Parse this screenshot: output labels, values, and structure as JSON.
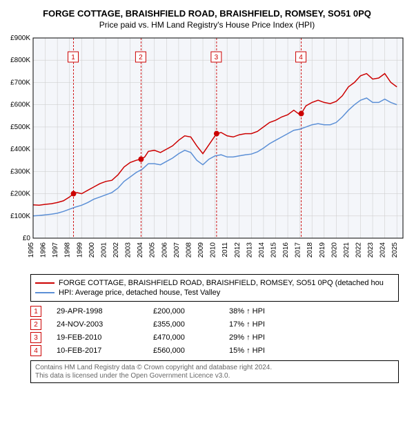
{
  "title_line1": "FORGE COTTAGE, BRAISHFIELD ROAD, BRAISHFIELD, ROMSEY, SO51 0PQ",
  "title_line2": "Price paid vs. HM Land Registry's House Price Index (HPI)",
  "chart": {
    "type": "line",
    "background_color": "#ffffff",
    "plot_background_color": "#f4f6fa",
    "grid_color": "#cfcfcf",
    "axis_color": "#000000",
    "xlim": [
      1995,
      2025.5
    ],
    "ylim": [
      0,
      900000
    ],
    "ytick_step": 100000,
    "ytick_labels": [
      "£0",
      "£100K",
      "£200K",
      "£300K",
      "£400K",
      "£500K",
      "£600K",
      "£700K",
      "£800K",
      "£900K"
    ],
    "xtick_step": 1,
    "xtick_labels": [
      "1995",
      "1996",
      "1997",
      "1998",
      "1999",
      "2000",
      "2001",
      "2002",
      "2003",
      "2004",
      "2005",
      "2006",
      "2007",
      "2008",
      "2009",
      "2010",
      "2011",
      "2012",
      "2013",
      "2014",
      "2015",
      "2016",
      "2017",
      "2018",
      "2019",
      "2020",
      "2021",
      "2022",
      "2023",
      "2024",
      "2025"
    ],
    "xtick_rotation": 90,
    "tick_fontsize": 10,
    "title_fontsize": 13,
    "line_width": 1.5,
    "series": [
      {
        "name": "property",
        "color": "#cc0000",
        "points": [
          [
            1995,
            150000
          ],
          [
            1995.5,
            148000
          ],
          [
            1996,
            152000
          ],
          [
            1996.5,
            155000
          ],
          [
            1997,
            160000
          ],
          [
            1997.5,
            168000
          ],
          [
            1998,
            185000
          ],
          [
            1998.33,
            200000
          ],
          [
            1998.6,
            205000
          ],
          [
            1999,
            200000
          ],
          [
            1999.5,
            215000
          ],
          [
            2000,
            230000
          ],
          [
            2000.5,
            245000
          ],
          [
            2001,
            255000
          ],
          [
            2001.5,
            260000
          ],
          [
            2002,
            285000
          ],
          [
            2002.5,
            320000
          ],
          [
            2003,
            340000
          ],
          [
            2003.5,
            350000
          ],
          [
            2003.9,
            355000
          ],
          [
            2004.2,
            365000
          ],
          [
            2004.5,
            390000
          ],
          [
            2005,
            395000
          ],
          [
            2005.5,
            385000
          ],
          [
            2006,
            400000
          ],
          [
            2006.5,
            415000
          ],
          [
            2007,
            440000
          ],
          [
            2007.5,
            460000
          ],
          [
            2008,
            455000
          ],
          [
            2008.5,
            415000
          ],
          [
            2009,
            380000
          ],
          [
            2009.5,
            420000
          ],
          [
            2010,
            460000
          ],
          [
            2010.13,
            470000
          ],
          [
            2010.5,
            475000
          ],
          [
            2011,
            460000
          ],
          [
            2011.5,
            455000
          ],
          [
            2012,
            465000
          ],
          [
            2012.5,
            470000
          ],
          [
            2013,
            470000
          ],
          [
            2013.5,
            480000
          ],
          [
            2014,
            500000
          ],
          [
            2014.5,
            520000
          ],
          [
            2015,
            530000
          ],
          [
            2015.5,
            545000
          ],
          [
            2016,
            555000
          ],
          [
            2016.5,
            575000
          ],
          [
            2017,
            555000
          ],
          [
            2017.11,
            560000
          ],
          [
            2017.5,
            595000
          ],
          [
            2018,
            610000
          ],
          [
            2018.5,
            620000
          ],
          [
            2019,
            610000
          ],
          [
            2019.5,
            605000
          ],
          [
            2020,
            615000
          ],
          [
            2020.5,
            640000
          ],
          [
            2021,
            680000
          ],
          [
            2021.5,
            700000
          ],
          [
            2022,
            730000
          ],
          [
            2022.5,
            740000
          ],
          [
            2023,
            715000
          ],
          [
            2023.5,
            720000
          ],
          [
            2024,
            740000
          ],
          [
            2024.5,
            700000
          ],
          [
            2025,
            680000
          ]
        ]
      },
      {
        "name": "hpi",
        "color": "#5b8fd6",
        "points": [
          [
            1995,
            100000
          ],
          [
            1995.5,
            102000
          ],
          [
            1996,
            105000
          ],
          [
            1996.5,
            108000
          ],
          [
            1997,
            112000
          ],
          [
            1997.5,
            120000
          ],
          [
            1998,
            130000
          ],
          [
            1998.5,
            140000
          ],
          [
            1999,
            148000
          ],
          [
            1999.5,
            160000
          ],
          [
            2000,
            175000
          ],
          [
            2000.5,
            185000
          ],
          [
            2001,
            195000
          ],
          [
            2001.5,
            205000
          ],
          [
            2002,
            225000
          ],
          [
            2002.5,
            255000
          ],
          [
            2003,
            275000
          ],
          [
            2003.5,
            295000
          ],
          [
            2004,
            310000
          ],
          [
            2004.5,
            335000
          ],
          [
            2005,
            335000
          ],
          [
            2005.5,
            330000
          ],
          [
            2006,
            345000
          ],
          [
            2006.5,
            360000
          ],
          [
            2007,
            380000
          ],
          [
            2007.5,
            395000
          ],
          [
            2008,
            385000
          ],
          [
            2008.5,
            350000
          ],
          [
            2009,
            330000
          ],
          [
            2009.5,
            355000
          ],
          [
            2010,
            370000
          ],
          [
            2010.5,
            375000
          ],
          [
            2011,
            365000
          ],
          [
            2011.5,
            365000
          ],
          [
            2012,
            370000
          ],
          [
            2012.5,
            375000
          ],
          [
            2013,
            378000
          ],
          [
            2013.5,
            388000
          ],
          [
            2014,
            405000
          ],
          [
            2014.5,
            425000
          ],
          [
            2015,
            440000
          ],
          [
            2015.5,
            455000
          ],
          [
            2016,
            470000
          ],
          [
            2016.5,
            485000
          ],
          [
            2017,
            490000
          ],
          [
            2017.5,
            500000
          ],
          [
            2018,
            510000
          ],
          [
            2018.5,
            515000
          ],
          [
            2019,
            510000
          ],
          [
            2019.5,
            510000
          ],
          [
            2020,
            520000
          ],
          [
            2020.5,
            545000
          ],
          [
            2021,
            575000
          ],
          [
            2021.5,
            600000
          ],
          [
            2022,
            620000
          ],
          [
            2022.5,
            630000
          ],
          [
            2023,
            610000
          ],
          [
            2023.5,
            610000
          ],
          [
            2024,
            625000
          ],
          [
            2024.5,
            610000
          ],
          [
            2025,
            600000
          ]
        ]
      }
    ],
    "transaction_markers": [
      {
        "n": 1,
        "year": 1998.33,
        "price": 200000
      },
      {
        "n": 2,
        "year": 2003.9,
        "price": 355000
      },
      {
        "n": 3,
        "year": 2010.13,
        "price": 470000
      },
      {
        "n": 4,
        "year": 2017.11,
        "price": 560000
      }
    ],
    "marker_dot_color": "#cc0000",
    "marker_dot_radius": 4,
    "marker_line_color": "#cc0000",
    "marker_line_dash": "3,2"
  },
  "legend": {
    "items": [
      {
        "color": "#cc0000",
        "label": "FORGE COTTAGE, BRAISHFIELD ROAD, BRAISHFIELD, ROMSEY, SO51 0PQ (detached hou"
      },
      {
        "color": "#5b8fd6",
        "label": "HPI: Average price, detached house, Test Valley"
      }
    ]
  },
  "transactions": [
    {
      "n": "1",
      "date": "29-APR-1998",
      "price": "£200,000",
      "pct": "38% ↑ HPI"
    },
    {
      "n": "2",
      "date": "24-NOV-2003",
      "price": "£355,000",
      "pct": "17% ↑ HPI"
    },
    {
      "n": "3",
      "date": "19-FEB-2010",
      "price": "£470,000",
      "pct": "29% ↑ HPI"
    },
    {
      "n": "4",
      "date": "10-FEB-2017",
      "price": "£560,000",
      "pct": "15% ↑ HPI"
    }
  ],
  "footer": {
    "line1": "Contains HM Land Registry data © Crown copyright and database right 2024.",
    "line2": "This data is licensed under the Open Government Licence v3.0."
  }
}
